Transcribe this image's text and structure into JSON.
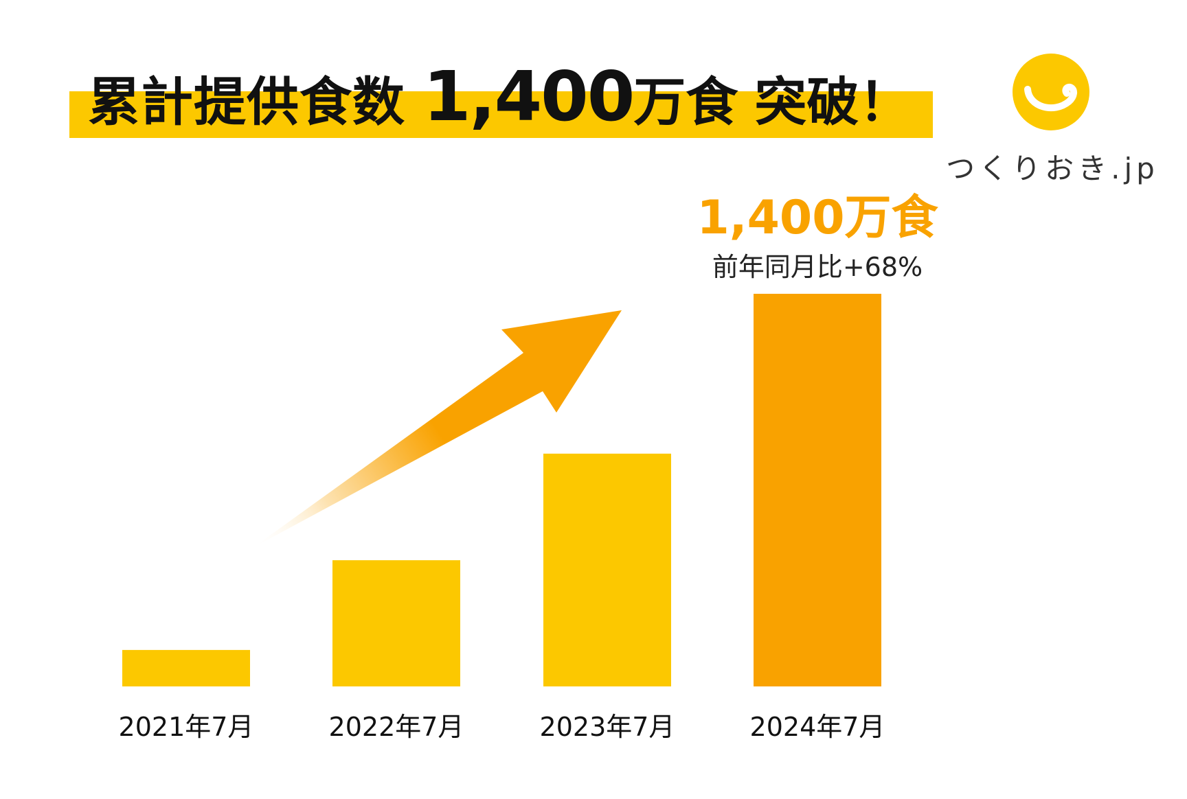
{
  "headline": {
    "part1": "累計提供食数",
    "part2": "1,400",
    "part3": "万食",
    "part4": "突破！"
  },
  "logo": {
    "text": "つくりおき.jp",
    "icon": "smile-icon"
  },
  "colors": {
    "accent_yellow": "#FCC800",
    "accent_orange": "#F9A200",
    "text_dark": "#111111",
    "logo_text": "#333333"
  },
  "chart_data": {
    "type": "bar",
    "categories": [
      "2021年7月",
      "2022年7月",
      "2023年7月",
      "2024年7月"
    ],
    "values": [
      130,
      450,
      830,
      1400
    ],
    "unit": "万食",
    "ylim": [
      0,
      1400
    ],
    "grid": false,
    "highlight_index": 3,
    "annotation": {
      "value_label": "1,400万食",
      "growth_label": "前年同月比+68%"
    },
    "trend_arrow": "growth-arrow"
  }
}
